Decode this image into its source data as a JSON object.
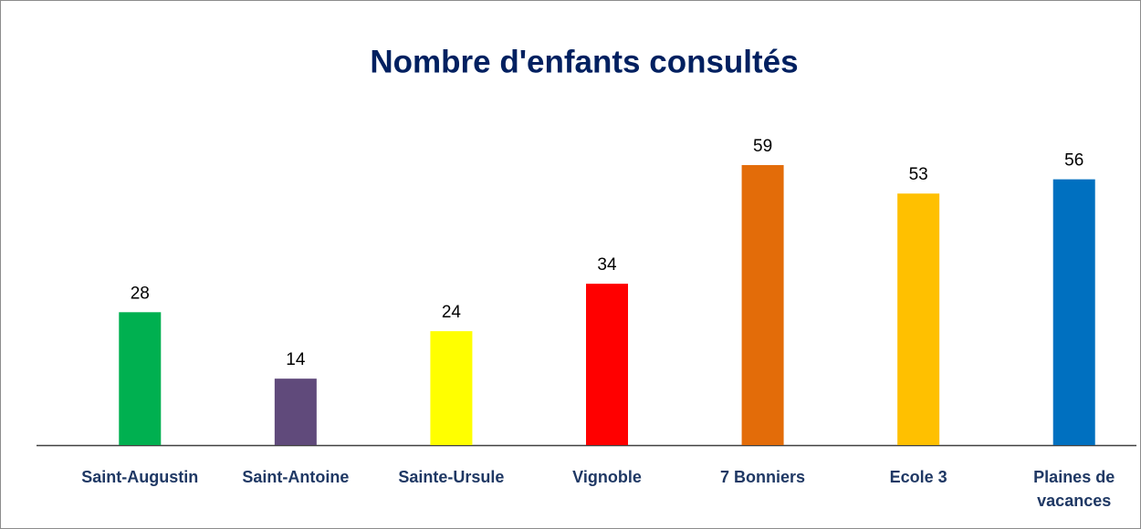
{
  "chart_data": {
    "type": "bar",
    "title": "Nombre d'enfants consultés",
    "categories": [
      "Saint-Augustin",
      "Saint-Antoine",
      "Sainte-Ursule",
      "Vignoble",
      "7 Bonniers",
      "Ecole 3",
      "Plaines de vacances"
    ],
    "values": [
      28,
      14,
      24,
      34,
      59,
      53,
      56
    ],
    "colors": [
      "#00b050",
      "#604a7b",
      "#ffff00",
      "#ff0000",
      "#e36c09",
      "#ffc000",
      "#0070c0"
    ]
  }
}
